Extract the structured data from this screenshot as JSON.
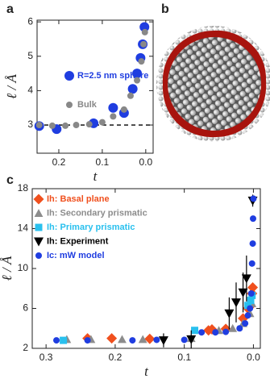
{
  "panel_labels": [
    "a",
    "b",
    "c"
  ],
  "chart_data": [
    {
      "type": "scatter",
      "ylabel": "ℓ / Å",
      "xlabel": "t",
      "xlim": [
        0.25,
        -0.017
      ],
      "ylim": [
        2.18,
        6.05
      ],
      "xticks": [
        0.2,
        0.1,
        {
          "value": 0,
          "label": "0.0"
        }
      ],
      "yticks": [
        3,
        4,
        5,
        6
      ],
      "hline": 3,
      "series": [
        {
          "name": "R=2.5 nm sphere",
          "color": "#1f3de0",
          "marker": "circle",
          "x": [
            0.245,
            0.205,
            0.12,
            0.075,
            0.05,
            0.03,
            0.02,
            0.012,
            0.007,
            0.003
          ],
          "values": [
            2.97,
            2.88,
            3.05,
            3.5,
            3.35,
            4.05,
            4.5,
            4.95,
            5.35,
            5.85
          ]
        },
        {
          "name": "Bulk",
          "color": "#888888",
          "marker": "circle",
          "x": [
            0.245,
            0.215,
            0.185,
            0.16,
            0.13,
            0.1,
            0.075,
            0.05,
            0.035,
            0.02,
            0.01,
            0.005,
            0.002
          ],
          "values": [
            3.0,
            2.98,
            2.98,
            3.0,
            3.02,
            3.08,
            3.25,
            3.45,
            3.85,
            4.3,
            4.85,
            5.35,
            5.7
          ]
        }
      ]
    },
    {
      "type": "scatter",
      "ylabel": "ℓ / Å",
      "xlabel": "t",
      "xlim": [
        0.32,
        -0.01
      ],
      "ylim": [
        2,
        18
      ],
      "xticks": [
        0.3,
        0.2,
        0.1,
        {
          "value": 0,
          "label": "0.0"
        }
      ],
      "yticks": [
        2,
        6,
        10,
        14,
        18
      ],
      "series": [
        {
          "name": "Ih: Basal plane",
          "color": "#f0501e",
          "marker": "diamond",
          "x": [
            0.24,
            0.205,
            0.15,
            0.065,
            0.06,
            0.04,
            0.015,
            0.008,
            0.005,
            0.002,
            0.001
          ],
          "values": [
            3.0,
            3.0,
            2.95,
            3.8,
            3.9,
            3.95,
            5.0,
            6.0,
            6.2,
            7.5,
            8.1
          ]
        },
        {
          "name": "Ih: Secondary prismatic",
          "color": "#8c8c8c",
          "marker": "triangle",
          "x": [
            0.27,
            0.235,
            0.19,
            0.16,
            0.09,
            0.05,
            0.03,
            0.015,
            0.005,
            0.002
          ],
          "values": [
            2.9,
            2.9,
            2.9,
            2.9,
            3.0,
            3.8,
            4.0,
            4.5,
            5.5,
            6.5
          ]
        },
        {
          "name": "Ih: Primary prismatic",
          "color": "#29c0ee",
          "marker": "square",
          "x": [
            0.275,
            0.085,
            0.008,
            0.004,
            0.002
          ],
          "values": [
            2.8,
            3.8,
            6.3,
            6.8,
            7.3
          ]
        },
        {
          "name": "Ih: Experiment",
          "color": "#000000",
          "marker": "triangle-down",
          "x": [
            0.13,
            0.09,
            0.035,
            0.025,
            0.015,
            0.01,
            0.001
          ],
          "values": [
            2.8,
            2.9,
            5.5,
            6.6,
            7.6,
            9.0,
            16.8
          ],
          "errors": [
            0.7,
            0.9,
            1.6,
            2.0,
            2.0,
            2.3,
            0.6
          ]
        },
        {
          "name": "Ic: mW model",
          "color": "#1f3de0",
          "marker": "circle",
          "x": [
            0.285,
            0.24,
            0.175,
            0.14,
            0.1,
            0.075,
            0.055,
            0.04,
            0.02,
            0.012,
            0.008,
            0.005,
            0.003,
            0.002,
            0.001,
            0.0005,
            0.0
          ],
          "values": [
            2.8,
            2.8,
            2.8,
            2.85,
            2.85,
            3.6,
            3.6,
            3.65,
            4.0,
            4.5,
            5.3,
            6.0,
            7.5,
            10.5,
            12.5,
            15.0,
            17.0
          ]
        }
      ]
    }
  ]
}
